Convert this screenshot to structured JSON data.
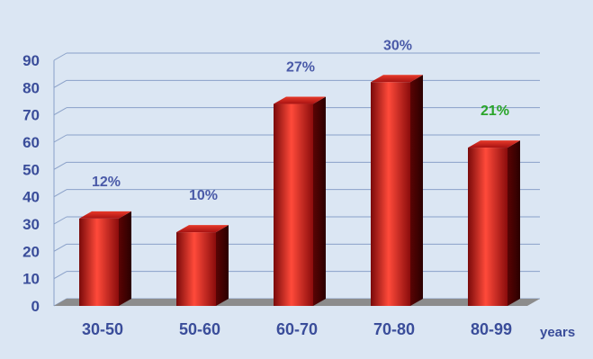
{
  "chart_data": {
    "type": "bar",
    "title": "",
    "xlabel": "years",
    "ylabel": "",
    "ylim": [
      0,
      90
    ],
    "yticks": [
      0,
      10,
      20,
      30,
      40,
      50,
      60,
      70,
      80,
      90
    ],
    "grid": true,
    "categories": [
      "30-50",
      "50-60",
      "60-70",
      "70-80",
      "80-99"
    ],
    "values": [
      32,
      27,
      74,
      82,
      58
    ],
    "data_labels": [
      "12%",
      "10%",
      "27%",
      "30%",
      "21%"
    ],
    "data_label_colors": [
      "#4a5aa8",
      "#4a5aa8",
      "#4a5aa8",
      "#4a5aa8",
      "#2aa52a"
    ],
    "colors": {
      "background": "#dbe6f3",
      "bar": "#c81e1e",
      "bar_highlight": "#ff4a3a",
      "bar_dark": "#4a0000",
      "text": "#3a4d9a",
      "grid": "#8aa0c8",
      "floor": "#8c8c8c"
    }
  }
}
